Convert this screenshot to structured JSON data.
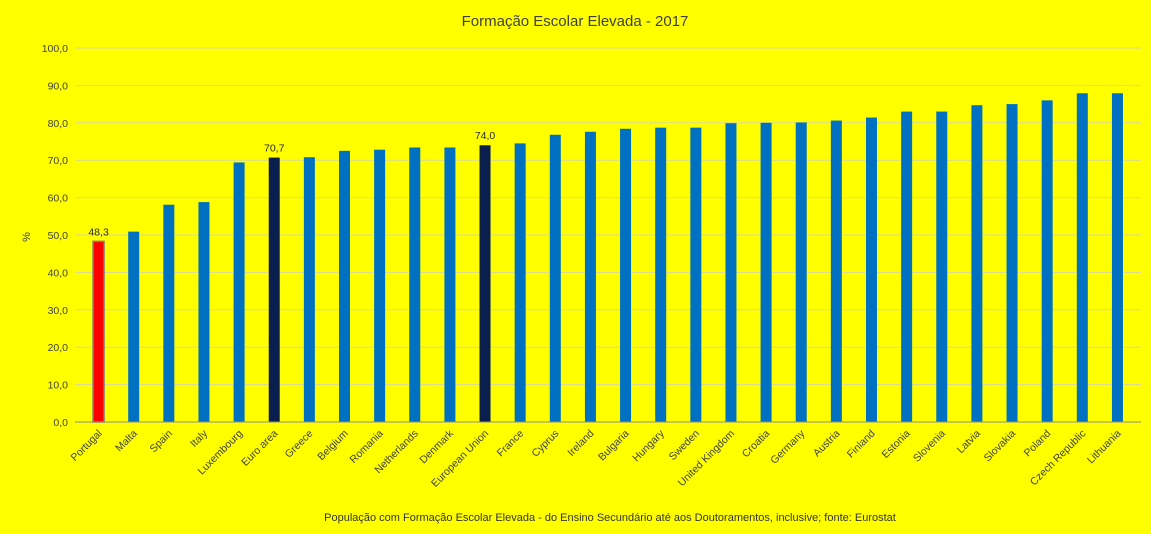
{
  "chart_data": {
    "type": "bar",
    "title": "Formação Escolar Elevada - 2017",
    "xlabel": "",
    "ylabel": "%",
    "ylim": [
      0,
      100
    ],
    "yticks": [
      "0,0",
      "10,0",
      "20,0",
      "30,0",
      "40,0",
      "50,0",
      "60,0",
      "70,0",
      "80,0",
      "90,0",
      "100,0"
    ],
    "categories": [
      "Portugal",
      "Malta",
      "Spain",
      "Italy",
      "Luxembourg",
      "Euro area",
      "Greece",
      "Belgium",
      "Romania",
      "Netherlands",
      "Denmark",
      "European Union",
      "France",
      "Cyprus",
      "Ireland",
      "Bulgaria",
      "Hungary",
      "Sweden",
      "United Kingdom",
      "Croatia",
      "Germany",
      "Austria",
      "Finland",
      "Estonia",
      "Slovenia",
      "Latvia",
      "Slovakia",
      "Poland",
      "Czech Republic",
      "Lithuania"
    ],
    "values": [
      48.3,
      50.9,
      58.1,
      58.8,
      69.4,
      70.7,
      70.8,
      72.5,
      72.8,
      73.4,
      73.4,
      74.0,
      74.5,
      76.8,
      77.6,
      78.4,
      78.7,
      78.7,
      79.9,
      80.0,
      80.1,
      80.6,
      81.4,
      83.0,
      83.0,
      84.7,
      85.0,
      86.0,
      87.9,
      87.9
    ],
    "highlight": {
      "Portugal": "#ff0000",
      "Euro area": "#0b1f4f",
      "European Union": "#0b1f4f"
    },
    "default_color": "#0070c0",
    "data_labels": {
      "Portugal": "48,3",
      "Euro area": "70,7",
      "European Union": "74,0"
    },
    "grid": true,
    "footnote": "População com Formação Escolar Elevada - do Ensino Secundário até aos Doutoramentos,  inclusive; fonte:  Eurostat"
  }
}
